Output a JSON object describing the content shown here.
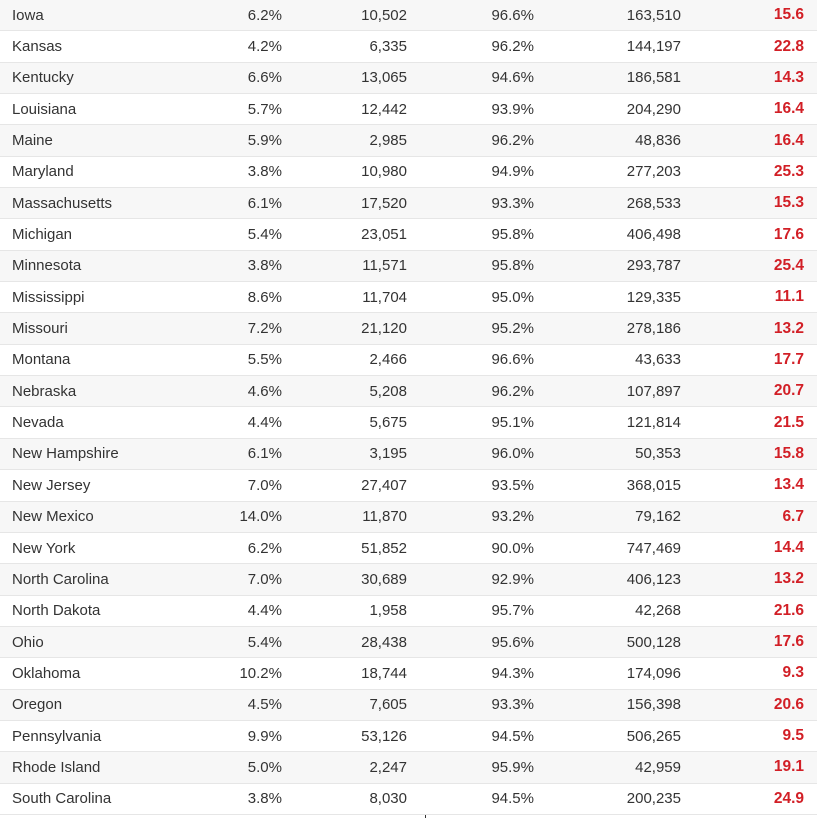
{
  "colors": {
    "ratio_text": "#d21f26",
    "stripe": "#f7f7f7",
    "divider": "#333333"
  },
  "rows": [
    {
      "state": "Iowa",
      "pct1": "6.2%",
      "n1": "10,502",
      "pct2": "96.6%",
      "n2": "163,510",
      "ratio": "15.6"
    },
    {
      "state": "Kansas",
      "pct1": "4.2%",
      "n1": "6,335",
      "pct2": "96.2%",
      "n2": "144,197",
      "ratio": "22.8"
    },
    {
      "state": "Kentucky",
      "pct1": "6.6%",
      "n1": "13,065",
      "pct2": "94.6%",
      "n2": "186,581",
      "ratio": "14.3"
    },
    {
      "state": "Louisiana",
      "pct1": "5.7%",
      "n1": "12,442",
      "pct2": "93.9%",
      "n2": "204,290",
      "ratio": "16.4"
    },
    {
      "state": "Maine",
      "pct1": "5.9%",
      "n1": "2,985",
      "pct2": "96.2%",
      "n2": "48,836",
      "ratio": "16.4"
    },
    {
      "state": "Maryland",
      "pct1": "3.8%",
      "n1": "10,980",
      "pct2": "94.9%",
      "n2": "277,203",
      "ratio": "25.3"
    },
    {
      "state": "Massachusetts",
      "pct1": "6.1%",
      "n1": "17,520",
      "pct2": "93.3%",
      "n2": "268,533",
      "ratio": "15.3"
    },
    {
      "state": "Michigan",
      "pct1": "5.4%",
      "n1": "23,051",
      "pct2": "95.8%",
      "n2": "406,498",
      "ratio": "17.6"
    },
    {
      "state": "Minnesota",
      "pct1": "3.8%",
      "n1": "11,571",
      "pct2": "95.8%",
      "n2": "293,787",
      "ratio": "25.4"
    },
    {
      "state": "Mississippi",
      "pct1": "8.6%",
      "n1": "11,704",
      "pct2": "95.0%",
      "n2": "129,335",
      "ratio": "11.1"
    },
    {
      "state": "Missouri",
      "pct1": "7.2%",
      "n1": "21,120",
      "pct2": "95.2%",
      "n2": "278,186",
      "ratio": "13.2"
    },
    {
      "state": "Montana",
      "pct1": "5.5%",
      "n1": "2,466",
      "pct2": "96.6%",
      "n2": "43,633",
      "ratio": "17.7"
    },
    {
      "state": "Nebraska",
      "pct1": "4.6%",
      "n1": "5,208",
      "pct2": "96.2%",
      "n2": "107,897",
      "ratio": "20.7"
    },
    {
      "state": "Nevada",
      "pct1": "4.4%",
      "n1": "5,675",
      "pct2": "95.1%",
      "n2": "121,814",
      "ratio": "21.5"
    },
    {
      "state": "New Hampshire",
      "pct1": "6.1%",
      "n1": "3,195",
      "pct2": "96.0%",
      "n2": "50,353",
      "ratio": "15.8"
    },
    {
      "state": "New Jersey",
      "pct1": "7.0%",
      "n1": "27,407",
      "pct2": "93.5%",
      "n2": "368,015",
      "ratio": "13.4"
    },
    {
      "state": "New Mexico",
      "pct1": "14.0%",
      "n1": "11,870",
      "pct2": "93.2%",
      "n2": "79,162",
      "ratio": "6.7"
    },
    {
      "state": "New York",
      "pct1": "6.2%",
      "n1": "51,852",
      "pct2": "90.0%",
      "n2": "747,469",
      "ratio": "14.4"
    },
    {
      "state": "North Carolina",
      "pct1": "7.0%",
      "n1": "30,689",
      "pct2": "92.9%",
      "n2": "406,123",
      "ratio": "13.2"
    },
    {
      "state": "North Dakota",
      "pct1": "4.4%",
      "n1": "1,958",
      "pct2": "95.7%",
      "n2": "42,268",
      "ratio": "21.6"
    },
    {
      "state": "Ohio",
      "pct1": "5.4%",
      "n1": "28,438",
      "pct2": "95.6%",
      "n2": "500,128",
      "ratio": "17.6"
    },
    {
      "state": "Oklahoma",
      "pct1": "10.2%",
      "n1": "18,744",
      "pct2": "94.3%",
      "n2": "174,096",
      "ratio": "9.3"
    },
    {
      "state": "Oregon",
      "pct1": "4.5%",
      "n1": "7,605",
      "pct2": "93.3%",
      "n2": "156,398",
      "ratio": "20.6"
    },
    {
      "state": "Pennsylvania",
      "pct1": "9.9%",
      "n1": "53,126",
      "pct2": "94.5%",
      "n2": "506,265",
      "ratio": "9.5"
    },
    {
      "state": "Rhode Island",
      "pct1": "5.0%",
      "n1": "2,247",
      "pct2": "95.9%",
      "n2": "42,959",
      "ratio": "19.1"
    },
    {
      "state": "South Carolina",
      "pct1": "3.8%",
      "n1": "8,030",
      "pct2": "94.5%",
      "n2": "200,235",
      "ratio": "24.9"
    }
  ]
}
